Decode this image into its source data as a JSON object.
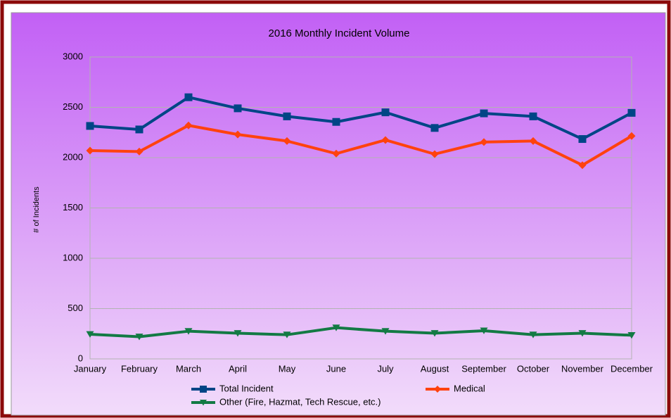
{
  "chart_data": {
    "type": "line",
    "title": "2016 Monthly Incident Volume",
    "y_label": "# of Incidents",
    "categories": [
      "January",
      "February",
      "March",
      "April",
      "May",
      "June",
      "July",
      "August",
      "September",
      "October",
      "November",
      "December"
    ],
    "series": [
      {
        "name": "Total Incident",
        "color": "#004586",
        "marker": "square",
        "values": [
          2315,
          2280,
          2600,
          2490,
          2410,
          2355,
          2450,
          2295,
          2440,
          2410,
          2185,
          2445
        ]
      },
      {
        "name": "Medical",
        "color": "#ff420e",
        "marker": "diamond",
        "values": [
          2070,
          2060,
          2320,
          2230,
          2165,
          2040,
          2175,
          2035,
          2155,
          2165,
          1925,
          2215
        ]
      },
      {
        "name": "Other (Fire, Hazmat, Tech Rescue, etc.)",
        "color": "#137a44",
        "marker": "triangle-down",
        "values": [
          245,
          220,
          275,
          255,
          240,
          310,
          275,
          255,
          280,
          240,
          255,
          235
        ]
      }
    ],
    "ylim": [
      0,
      3000
    ],
    "yticks": [
      0,
      500,
      1000,
      1500,
      2000,
      2500,
      3000
    ],
    "grid": true
  }
}
